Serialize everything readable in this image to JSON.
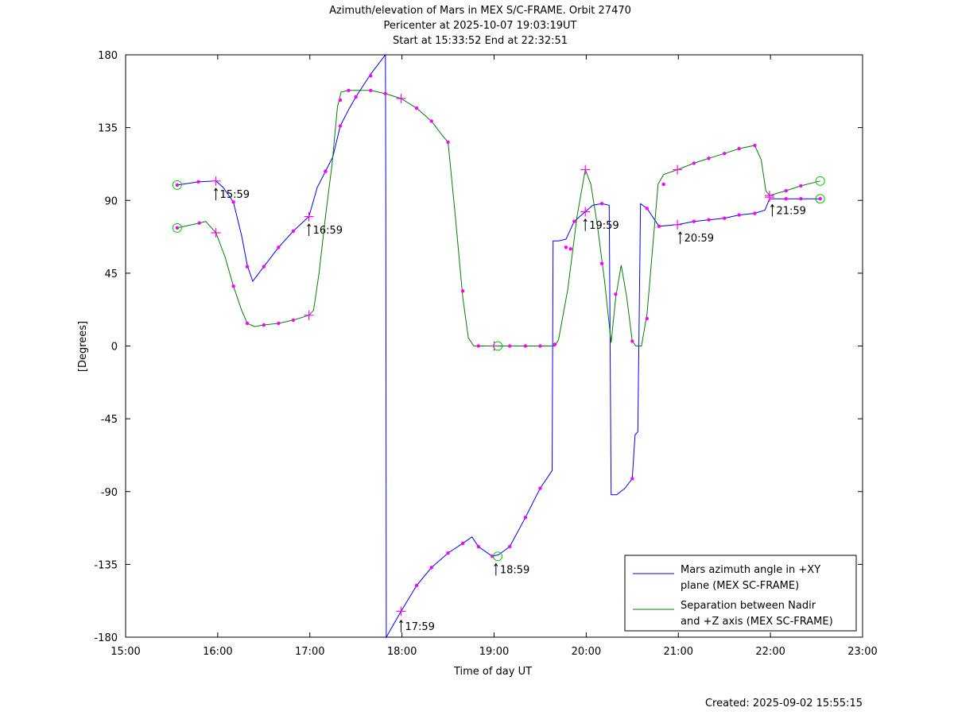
{
  "chart_data": {
    "type": "line",
    "title_lines": [
      "Azimuth/elevation of Mars in MEX S/C-FRAME.  Orbit 27470",
      "Pericenter at 2025-10-07 19:03:19UT",
      "Start at 15:33:52 End at 22:32:51"
    ],
    "xlabel": "Time of day UT",
    "ylabel": "[Degrees]",
    "created": "Created: 2025-09-02 15:55:15",
    "xlim": [
      15.0,
      23.0
    ],
    "ylim": [
      -180,
      180
    ],
    "x_ticks": [
      15,
      16,
      17,
      18,
      19,
      20,
      21,
      22,
      23
    ],
    "x_tick_labels": [
      "15:00",
      "16:00",
      "17:00",
      "18:00",
      "19:00",
      "20:00",
      "21:00",
      "22:00",
      "23:00"
    ],
    "y_ticks": [
      180,
      135,
      90,
      45,
      0,
      -45,
      -90,
      -135,
      -180
    ],
    "y_tick_labels": [
      "180",
      "135",
      "90",
      "45",
      "0",
      "-45",
      "-90",
      "-135",
      "-180"
    ],
    "grid": false,
    "legend_position": "bottom-right",
    "series": [
      {
        "name": "Mars azimuth angle in +XY plane (MEX SC-FRAME)",
        "legend_lines": [
          "Mars azimuth angle in +XY",
          "plane (MEX SC-FRAME)"
        ],
        "color": "#0000ff",
        "points": [
          [
            15.56,
            99.5
          ],
          [
            15.8,
            101.5
          ],
          [
            15.98,
            102.0
          ],
          [
            16.06,
            98.0
          ],
          [
            16.17,
            89.0
          ],
          [
            16.26,
            68.0
          ],
          [
            16.32,
            50.0
          ],
          [
            16.38,
            40.0
          ],
          [
            16.5,
            49.0
          ],
          [
            16.66,
            61.0
          ],
          [
            16.82,
            71.0
          ],
          [
            16.99,
            80.0
          ],
          [
            17.08,
            98.0
          ],
          [
            17.17,
            108.0
          ],
          [
            17.25,
            117.0
          ],
          [
            17.33,
            136.0
          ],
          [
            17.42,
            146.0
          ],
          [
            17.5,
            154.0
          ],
          [
            17.66,
            168.0
          ],
          [
            17.82,
            180.0
          ],
          [
            17.825,
            90.0
          ],
          [
            17.83,
            -180.0
          ],
          [
            17.93,
            -170.0
          ],
          [
            17.99,
            -164.0
          ],
          [
            18.16,
            -148.0
          ],
          [
            18.32,
            -137.0
          ],
          [
            18.5,
            -128.0
          ],
          [
            18.66,
            -122.0
          ],
          [
            18.76,
            -118.0
          ],
          [
            18.83,
            -124.0
          ],
          [
            18.98,
            -130.0
          ],
          [
            19.05,
            -129.0
          ],
          [
            19.17,
            -124.0
          ],
          [
            19.34,
            -106.0
          ],
          [
            19.5,
            -88.0
          ],
          [
            19.63,
            -77.0
          ],
          [
            19.64,
            65.0
          ],
          [
            19.7,
            65.0
          ],
          [
            19.78,
            66.0
          ],
          [
            19.87,
            77.0
          ],
          [
            19.99,
            83.0
          ],
          [
            20.07,
            87.0
          ],
          [
            20.17,
            88.0
          ],
          [
            20.25,
            87.0
          ],
          [
            20.27,
            -92.0
          ],
          [
            20.33,
            -92.0
          ],
          [
            20.42,
            -88.0
          ],
          [
            20.5,
            -82.0
          ],
          [
            20.53,
            -55.0
          ],
          [
            20.56,
            -53.0
          ],
          [
            20.59,
            88.0
          ],
          [
            20.66,
            85.0
          ],
          [
            20.79,
            74.0
          ],
          [
            20.99,
            75.0
          ],
          [
            21.17,
            77.0
          ],
          [
            21.33,
            78.0
          ],
          [
            21.5,
            79.0
          ],
          [
            21.66,
            81.0
          ],
          [
            21.83,
            82.0
          ],
          [
            21.94,
            84.0
          ],
          [
            21.99,
            91.0
          ],
          [
            22.17,
            91.0
          ],
          [
            22.33,
            91.0
          ],
          [
            22.54,
            91.0
          ]
        ],
        "markers": [
          [
            15.56,
            99.5
          ],
          [
            15.79,
            101.5
          ],
          [
            16.17,
            89.0
          ],
          [
            16.32,
            49.0
          ],
          [
            16.5,
            49.0
          ],
          [
            16.66,
            61.0
          ],
          [
            16.82,
            71.0
          ],
          [
            17.17,
            108.0
          ],
          [
            17.33,
            136.0
          ],
          [
            17.5,
            154.0
          ],
          [
            17.66,
            167.0
          ],
          [
            18.16,
            -148.0
          ],
          [
            18.32,
            -137.0
          ],
          [
            18.5,
            -128.0
          ],
          [
            18.66,
            -122.0
          ],
          [
            18.83,
            -124.0
          ],
          [
            18.98,
            -130.0
          ],
          [
            19.17,
            -124.0
          ],
          [
            19.34,
            -106.0
          ],
          [
            19.5,
            -88.0
          ],
          [
            19.78,
            61.0
          ],
          [
            19.87,
            77.0
          ],
          [
            20.17,
            88.0
          ],
          [
            20.5,
            -82.0
          ],
          [
            20.66,
            85.0
          ],
          [
            20.79,
            74.0
          ],
          [
            21.17,
            77.0
          ],
          [
            21.33,
            78.0
          ],
          [
            21.5,
            79.0
          ],
          [
            21.66,
            81.0
          ],
          [
            21.83,
            82.0
          ],
          [
            22.17,
            91.0
          ],
          [
            22.33,
            91.0
          ],
          [
            22.54,
            91.0
          ]
        ],
        "crosses": [
          [
            15.98,
            102.0
          ],
          [
            16.99,
            80.0
          ],
          [
            17.99,
            -164.0
          ],
          [
            19.99,
            83.0
          ],
          [
            20.99,
            75.0
          ],
          [
            21.99,
            92.0
          ]
        ]
      },
      {
        "name": "Separation between Nadir and +Z axis (MEX SC-FRAME)",
        "legend_lines": [
          "Separation between Nadir",
          "and +Z axis (MEX SC-FRAME)"
        ],
        "color": "#008000",
        "points": [
          [
            15.56,
            73.0
          ],
          [
            15.8,
            76.0
          ],
          [
            15.87,
            77.0
          ],
          [
            15.98,
            70.0
          ],
          [
            16.08,
            55.0
          ],
          [
            16.17,
            37.0
          ],
          [
            16.26,
            22.0
          ],
          [
            16.32,
            14.0
          ],
          [
            16.4,
            12.0
          ],
          [
            16.5,
            13.0
          ],
          [
            16.66,
            14.0
          ],
          [
            16.82,
            16.0
          ],
          [
            16.99,
            19.0
          ],
          [
            17.04,
            22.0
          ],
          [
            17.1,
            45.0
          ],
          [
            17.17,
            80.0
          ],
          [
            17.24,
            112.0
          ],
          [
            17.3,
            148.0
          ],
          [
            17.34,
            157.0
          ],
          [
            17.42,
            158.0
          ],
          [
            17.66,
            158.0
          ],
          [
            17.82,
            156.0
          ],
          [
            17.99,
            153.0
          ],
          [
            18.16,
            147.0
          ],
          [
            18.32,
            139.0
          ],
          [
            18.44,
            130.0
          ],
          [
            18.5,
            126.0
          ],
          [
            18.58,
            80.0
          ],
          [
            18.66,
            30.0
          ],
          [
            18.72,
            5.0
          ],
          [
            18.78,
            0.0
          ],
          [
            18.83,
            0.0
          ],
          [
            19.0,
            0.0
          ],
          [
            19.17,
            0.0
          ],
          [
            19.34,
            0.0
          ],
          [
            19.5,
            0.0
          ],
          [
            19.66,
            0.0
          ],
          [
            19.7,
            4.0
          ],
          [
            19.8,
            35.0
          ],
          [
            19.9,
            80.0
          ],
          [
            19.99,
            109.0
          ],
          [
            20.05,
            100.0
          ],
          [
            20.12,
            75.0
          ],
          [
            20.2,
            40.0
          ],
          [
            20.27,
            2.0
          ],
          [
            20.32,
            30.0
          ],
          [
            20.38,
            50.0
          ],
          [
            20.44,
            30.0
          ],
          [
            20.5,
            3.0
          ],
          [
            20.54,
            0.0
          ],
          [
            20.6,
            0.0
          ],
          [
            20.66,
            20.0
          ],
          [
            20.72,
            60.0
          ],
          [
            20.78,
            100.0
          ],
          [
            20.84,
            106.0
          ],
          [
            20.99,
            109.0
          ],
          [
            21.17,
            113.0
          ],
          [
            21.33,
            116.0
          ],
          [
            21.5,
            119.0
          ],
          [
            21.66,
            122.0
          ],
          [
            21.83,
            124.0
          ],
          [
            21.9,
            115.0
          ],
          [
            21.95,
            96.0
          ],
          [
            21.99,
            93.0
          ],
          [
            22.17,
            96.0
          ],
          [
            22.33,
            99.0
          ],
          [
            22.54,
            102.0
          ]
        ],
        "markers": [
          [
            15.56,
            73.0
          ],
          [
            15.8,
            76.0
          ],
          [
            16.17,
            37.0
          ],
          [
            16.32,
            14.0
          ],
          [
            16.5,
            13.0
          ],
          [
            16.66,
            14.0
          ],
          [
            16.82,
            16.0
          ],
          [
            17.17,
            108.0
          ],
          [
            17.33,
            152.0
          ],
          [
            17.42,
            158.0
          ],
          [
            17.66,
            158.0
          ],
          [
            17.82,
            156.0
          ],
          [
            18.16,
            147.0
          ],
          [
            18.32,
            139.0
          ],
          [
            18.5,
            126.0
          ],
          [
            18.66,
            34.0
          ],
          [
            18.83,
            0.0
          ],
          [
            19.17,
            0.0
          ],
          [
            19.34,
            0.0
          ],
          [
            19.5,
            0.0
          ],
          [
            19.66,
            1.0
          ],
          [
            19.83,
            60.0
          ],
          [
            20.17,
            51.0
          ],
          [
            20.32,
            32.0
          ],
          [
            20.5,
            3.0
          ],
          [
            20.66,
            17.0
          ],
          [
            20.84,
            100.0
          ],
          [
            21.17,
            113.0
          ],
          [
            21.33,
            116.0
          ],
          [
            21.5,
            119.0
          ],
          [
            21.66,
            122.0
          ],
          [
            21.83,
            124.0
          ],
          [
            22.17,
            96.0
          ],
          [
            22.33,
            99.0
          ]
        ],
        "crosses": [
          [
            15.98,
            70.0
          ],
          [
            16.99,
            19.0
          ],
          [
            17.99,
            153.0
          ],
          [
            19.0,
            0.0
          ],
          [
            19.99,
            109.0
          ],
          [
            20.99,
            109.0
          ],
          [
            21.99,
            93.0
          ]
        ]
      }
    ],
    "circle_markers": [
      [
        15.56,
        99.5
      ],
      [
        15.56,
        73.0
      ],
      [
        19.04,
        0.0
      ],
      [
        19.04,
        -130.0
      ],
      [
        22.54,
        91.0
      ],
      [
        22.54,
        102.0
      ]
    ],
    "time_annotations": [
      {
        "label": "15:59",
        "x": 15.98,
        "y": 92.0
      },
      {
        "label": "16:59",
        "x": 16.99,
        "y": 70.0
      },
      {
        "label": "17:59",
        "x": 17.99,
        "y": -175.0
      },
      {
        "label": "18:59",
        "x": 19.02,
        "y": -140.0
      },
      {
        "label": "19:59",
        "x": 19.99,
        "y": 73.0
      },
      {
        "label": "20:59",
        "x": 21.02,
        "y": 65.0
      },
      {
        "label": "21:59",
        "x": 22.02,
        "y": 82.0
      }
    ],
    "colors": {
      "marker": "#ff00ff",
      "circle": "#00cc00",
      "axis": "#000000"
    }
  }
}
